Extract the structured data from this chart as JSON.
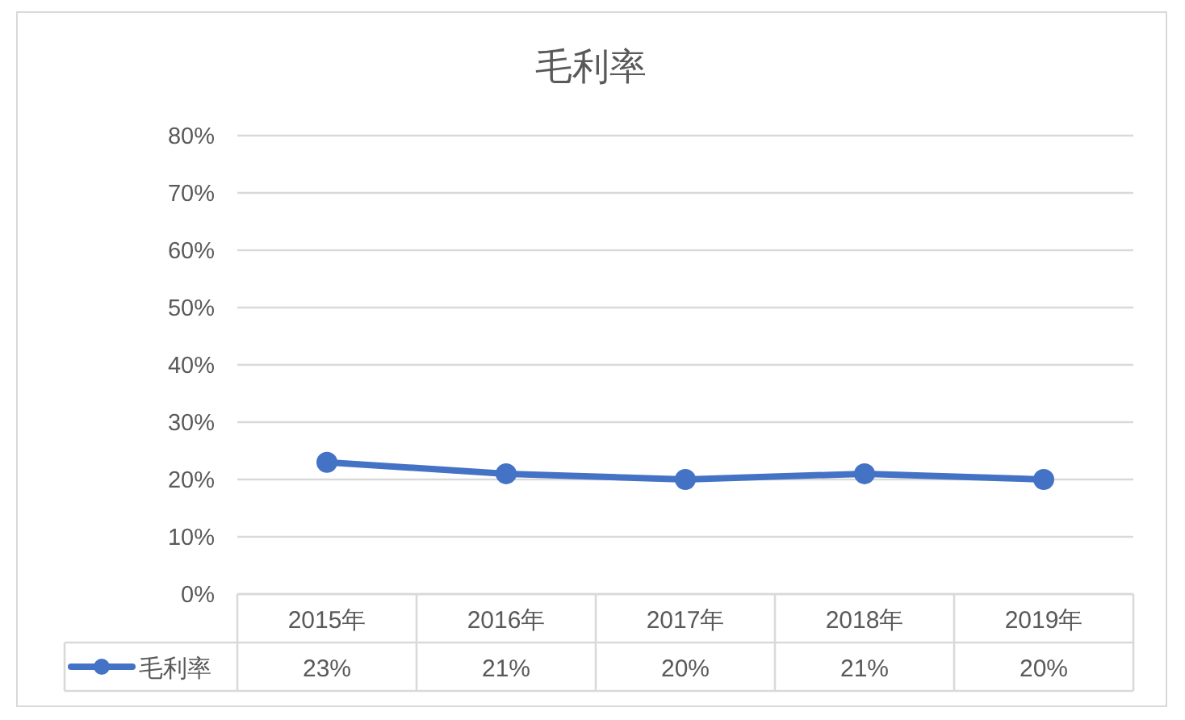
{
  "chart_data": {
    "type": "line",
    "title": "毛利率",
    "categories": [
      "2015年",
      "2016年",
      "2017年",
      "2018年",
      "2019年"
    ],
    "series": [
      {
        "name": "毛利率",
        "color": "#4472c4",
        "values": [
          23,
          21,
          20,
          21,
          20
        ],
        "value_labels": [
          "23%",
          "21%",
          "20%",
          "21%",
          "20%"
        ]
      }
    ],
    "ylim": [
      0,
      80
    ],
    "yticks": [
      {
        "value": 0,
        "label": "0%"
      },
      {
        "value": 10,
        "label": "10%"
      },
      {
        "value": 20,
        "label": "20%"
      },
      {
        "value": 30,
        "label": "30%"
      },
      {
        "value": 40,
        "label": "40%"
      },
      {
        "value": 50,
        "label": "50%"
      },
      {
        "value": 60,
        "label": "60%"
      },
      {
        "value": 70,
        "label": "70%"
      },
      {
        "value": 80,
        "label": "80%"
      }
    ],
    "grid": "y",
    "marker": "circle",
    "line_style": "solid",
    "legend": "bottom"
  }
}
